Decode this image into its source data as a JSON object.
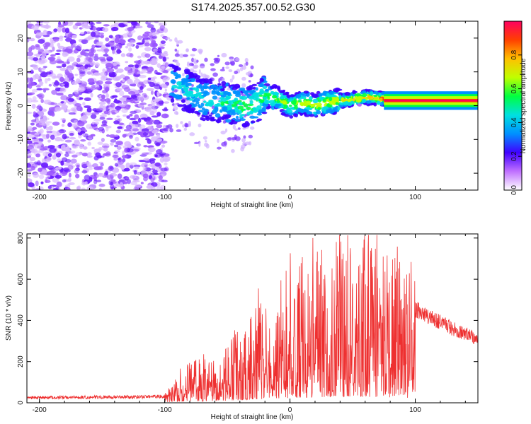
{
  "title": "S174.2025.357.00.52.G30",
  "chart_data": [
    {
      "type": "heatmap",
      "name": "spectrogram",
      "xlabel": "Height of straight line (km)",
      "ylabel": "Frequency (Hz)",
      "xlim": [
        -210,
        150
      ],
      "ylim": [
        -25,
        25
      ],
      "xticks": [
        -200,
        -100,
        0,
        100
      ],
      "yticks": [
        -20,
        -10,
        0,
        10,
        20
      ],
      "ridge": [
        {
          "x": -90,
          "y": 6
        },
        {
          "x": -80,
          "y": 4
        },
        {
          "x": -70,
          "y": 2
        },
        {
          "x": -60,
          "y": 1
        },
        {
          "x": -50,
          "y": 1
        },
        {
          "x": -40,
          "y": 0
        },
        {
          "x": -30,
          "y": 0
        },
        {
          "x": -20,
          "y": 3
        },
        {
          "x": -10,
          "y": 2
        },
        {
          "x": 0,
          "y": 0
        },
        {
          "x": 10,
          "y": 1
        },
        {
          "x": 20,
          "y": 0
        },
        {
          "x": 30,
          "y": 1
        },
        {
          "x": 40,
          "y": 1.5
        },
        {
          "x": 50,
          "y": 2
        },
        {
          "x": 60,
          "y": 2.5
        },
        {
          "x": 75,
          "y": 2
        },
        {
          "x": 100,
          "y": 1.5
        },
        {
          "x": 150,
          "y": 1.5
        }
      ],
      "colorbar": {
        "label": "Normalized spectral amplitude",
        "range": [
          0,
          1
        ],
        "ticks": [
          "0.0",
          "0.2",
          "0.4",
          "0.6",
          "0.8"
        ],
        "colors": [
          "#ffffff",
          "#c070ff",
          "#4000ff",
          "#0090ff",
          "#00e0e0",
          "#00ff40",
          "#c0ff00",
          "#ffc000",
          "#ff4000",
          "#ff0060"
        ]
      }
    },
    {
      "type": "line",
      "name": "snr",
      "xlabel": "Height of straight line (km)",
      "ylabel": "SNR (10 * v/v)",
      "xlim": [
        -210,
        150
      ],
      "ylim": [
        0,
        820
      ],
      "xticks": [
        -200,
        -100,
        0,
        100
      ],
      "yticks": [
        0,
        200,
        400,
        600,
        800
      ],
      "color": "#ee3030",
      "envelope": [
        {
          "x": -210,
          "y": 25
        },
        {
          "x": -100,
          "y": 30
        },
        {
          "x": -90,
          "y": 120
        },
        {
          "x": -70,
          "y": 160
        },
        {
          "x": -50,
          "y": 200
        },
        {
          "x": -30,
          "y": 320
        },
        {
          "x": -10,
          "y": 420
        },
        {
          "x": 10,
          "y": 520
        },
        {
          "x": 30,
          "y": 570
        },
        {
          "x": 50,
          "y": 600
        },
        {
          "x": 70,
          "y": 560
        },
        {
          "x": 90,
          "y": 480
        },
        {
          "x": 110,
          "y": 420
        },
        {
          "x": 130,
          "y": 360
        },
        {
          "x": 150,
          "y": 310
        }
      ]
    }
  ]
}
